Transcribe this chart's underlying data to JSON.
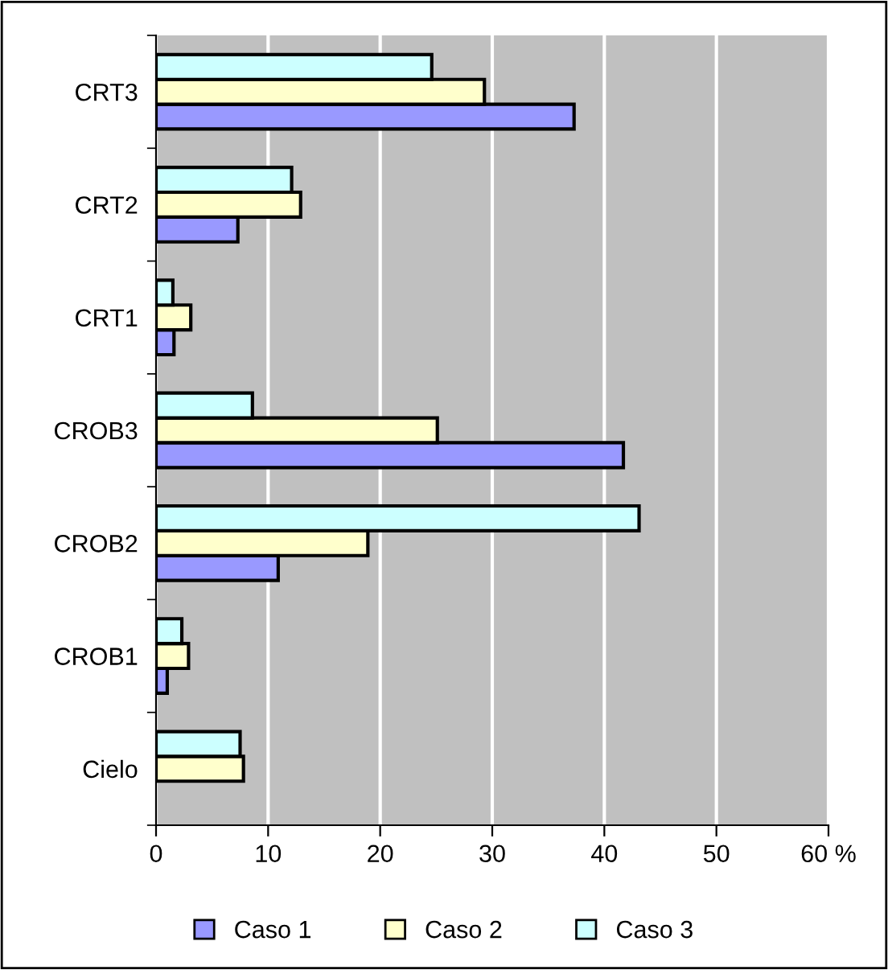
{
  "chart_data": {
    "type": "bar",
    "orientation": "horizontal",
    "categories": [
      "CRT3",
      "CRT2",
      "CRT1",
      "CROB3",
      "CROB2",
      "CROB1",
      "Cielo"
    ],
    "series": [
      {
        "name": "Caso 1",
        "color": "#9999ff",
        "values": [
          37.3,
          7.3,
          1.6,
          41.7,
          10.9,
          1.0,
          null
        ]
      },
      {
        "name": "Caso 2",
        "color": "#ffffcc",
        "values": [
          29.3,
          12.9,
          3.1,
          25.1,
          18.9,
          2.9,
          7.8
        ]
      },
      {
        "name": "Caso 3",
        "color": "#ccffff",
        "values": [
          24.6,
          12.1,
          1.5,
          8.6,
          43.1,
          2.3,
          7.5
        ]
      }
    ],
    "xlim": [
      0,
      60
    ],
    "xticks": [
      0,
      10,
      20,
      30,
      40,
      50,
      {
        "value": 60,
        "label": "60 %"
      }
    ],
    "grid": "x",
    "legend": "bottom"
  }
}
